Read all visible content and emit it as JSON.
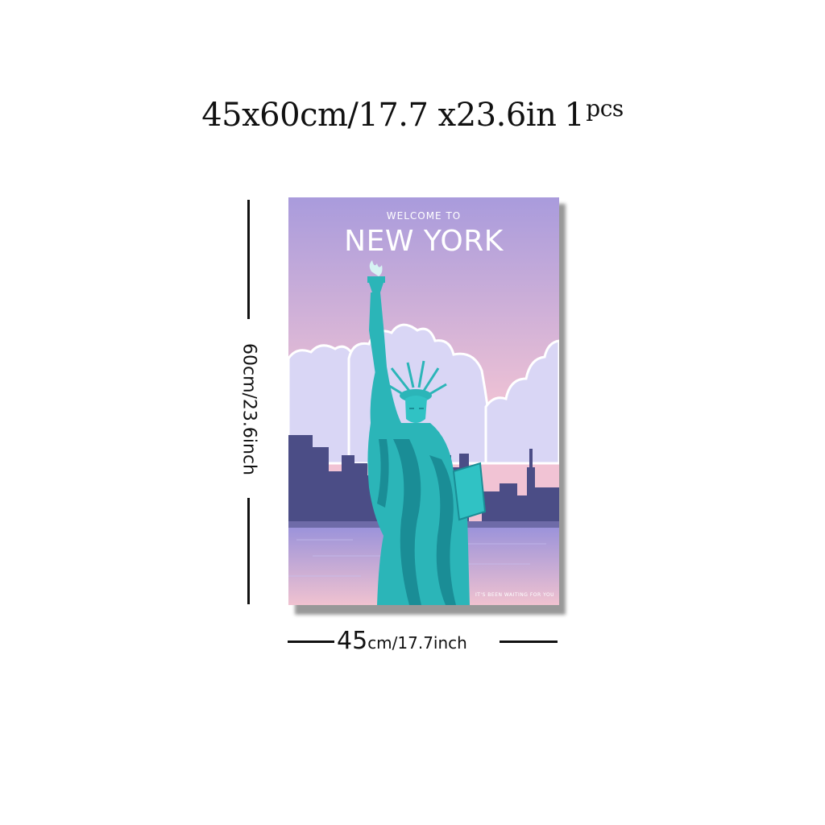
{
  "headline": {
    "size_text": "45x60cm/17.7 x23.6in",
    "quantity": "1",
    "quantity_unit": "pcs"
  },
  "dimensions": {
    "height_label": "60cm/23.6inch",
    "width_big": "45",
    "width_rest": "cm/17.7inch"
  },
  "poster": {
    "subtitle": "WELCOME TO",
    "title": "NEW YORK",
    "tagline": "IT'S BEEN WAITING FOR YOU"
  },
  "colors": {
    "sky_top": "#a99bdc",
    "sky_bottom": "#f1c3d4",
    "skyline": "#4b4d86",
    "statue": "#2bb5b8",
    "statue_shadow": "#1a8d96",
    "water": "#a99fe0"
  },
  "icons": [
    "statue-of-liberty",
    "skyline",
    "clouds"
  ]
}
